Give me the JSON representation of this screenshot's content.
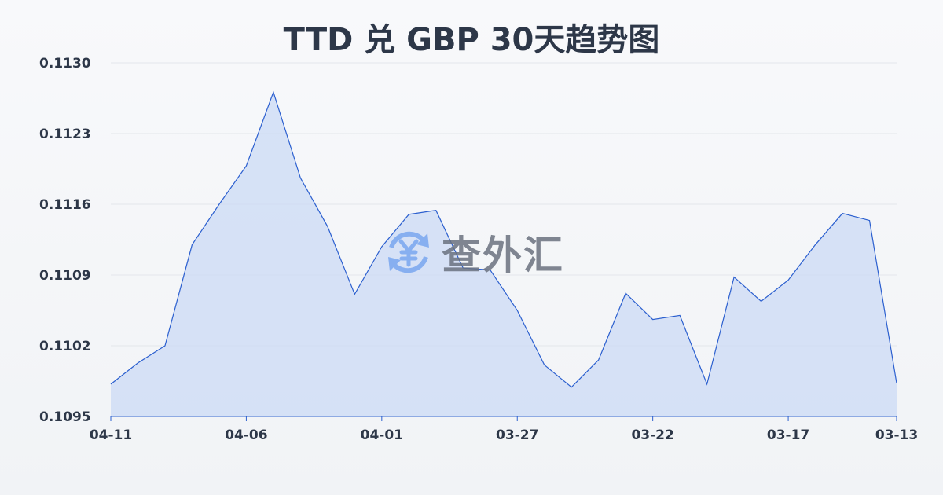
{
  "chart_data": {
    "type": "area",
    "title": "TTD 兑 GBP 30天趋势图",
    "xlabel": "",
    "ylabel": "",
    "ylim": [
      0.1095,
      0.113
    ],
    "yticks": [
      "0.1130",
      "0.1123",
      "0.1116",
      "0.1109",
      "0.1102",
      "0.1095"
    ],
    "xticks": [
      "04-11",
      "04-06",
      "04-01",
      "03-27",
      "03-22",
      "03-17",
      "03-13"
    ],
    "grid": true,
    "line_color": "#2b5fcf",
    "fill_color": "#c9d8f5",
    "x": [
      "04-11",
      "04-10",
      "04-09",
      "04-08",
      "04-07",
      "04-06",
      "04-05",
      "04-04",
      "04-03",
      "04-02",
      "04-01",
      "03-31",
      "03-30",
      "03-29",
      "03-28",
      "03-27",
      "03-26",
      "03-25",
      "03-24",
      "03-23",
      "03-22",
      "03-21",
      "03-20",
      "03-19",
      "03-18",
      "03-17",
      "03-16",
      "03-15",
      "03-14",
      "03-13"
    ],
    "values": [
      0.10982,
      0.11003,
      0.1102,
      0.1112,
      0.1116,
      0.11198,
      0.11271,
      0.11186,
      0.11138,
      0.11071,
      0.11118,
      0.1115,
      0.11154,
      0.11097,
      0.11095,
      0.11055,
      0.11001,
      0.10979,
      0.11006,
      0.11072,
      0.11046,
      0.1105,
      0.10982,
      0.11088,
      0.11064,
      0.11085,
      0.1112,
      0.11151,
      0.11144,
      0.10983
    ]
  },
  "watermark": {
    "text": "查外汇",
    "icon": "yen-exchange-icon",
    "color": "#7aa7f0"
  }
}
